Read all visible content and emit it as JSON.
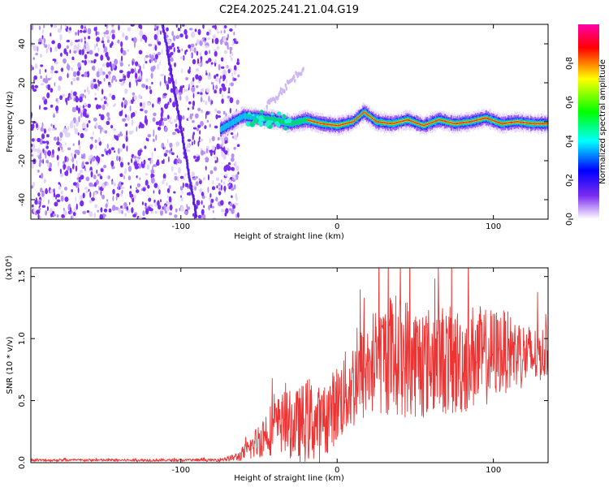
{
  "title": "C2E4.2025.241.21.04.G19",
  "chart_data": [
    {
      "type": "heatmap",
      "name": "spectrogram",
      "xlabel": "Height of straight line (km)",
      "ylabel": "Frequency (Hz)",
      "xlim": [
        -196,
        135
      ],
      "ylim": [
        -50,
        50
      ],
      "xticks": [
        -100,
        0,
        100
      ],
      "xtick_labels": [
        "-100",
        "0",
        "100"
      ],
      "yticks": [
        -40,
        -20,
        0,
        20,
        40
      ],
      "ytick_labels": [
        "-40",
        "-20",
        "0",
        "20",
        "40"
      ],
      "noise_region_end_km": -63,
      "ridge": {
        "x": [
          -75,
          -60,
          -50,
          -40,
          -30,
          -20,
          -10,
          0,
          10,
          17,
          25,
          35,
          45,
          55,
          65,
          75,
          85,
          95,
          105,
          115,
          125,
          135
        ],
        "y": [
          -4,
          3,
          2,
          1,
          -1,
          1,
          -1,
          -2,
          0,
          5,
          0,
          -1,
          1,
          -2,
          1,
          -1,
          0,
          2,
          -1,
          0,
          -1,
          -1
        ]
      },
      "colorbar": {
        "label": "Normalized spectral amplitude",
        "ticks": [
          0.0,
          0.2,
          0.4,
          0.6,
          0.8
        ],
        "tick_labels": [
          "0.0",
          "0.2",
          "0.4",
          "0.6",
          "0.8"
        ],
        "range": [
          0,
          1
        ],
        "colors": [
          "#ffffff",
          "#7b2cf0",
          "#0000ff",
          "#00ffff",
          "#00ff00",
          "#ffff00",
          "#ff0000",
          "#ff00aa"
        ]
      }
    },
    {
      "type": "line",
      "name": "snr",
      "xlabel": "Height of straight line (km)",
      "ylabel": "SNR (10 * v/v)",
      "scale_label": "(x10⁴)",
      "xlim": [
        -196,
        135
      ],
      "ylim": [
        0,
        1.57
      ],
      "xticks": [
        -100,
        0,
        100
      ],
      "xtick_labels": [
        "-100",
        "0",
        "100"
      ],
      "yticks": [
        0.0,
        0.5,
        1.0,
        1.5
      ],
      "ytick_labels": [
        "0.0",
        "0.5",
        "1.0",
        "1.5"
      ],
      "color": "#ee3333",
      "envelope": {
        "x": [
          -196,
          -80,
          -70,
          -63,
          -55,
          -45,
          -35,
          -25,
          -18,
          -10,
          -5,
          5,
          15,
          25,
          35,
          45,
          55,
          65,
          75,
          85,
          95,
          105,
          115,
          125,
          135
        ],
        "mean": [
          0.02,
          0.02,
          0.03,
          0.05,
          0.12,
          0.25,
          0.32,
          0.3,
          0.35,
          0.3,
          0.4,
          0.55,
          0.7,
          0.82,
          0.88,
          0.85,
          0.8,
          0.85,
          0.8,
          0.85,
          0.85,
          0.9,
          0.88,
          0.85,
          0.9
        ],
        "amplitude": [
          0.01,
          0.01,
          0.02,
          0.04,
          0.1,
          0.2,
          0.25,
          0.3,
          0.35,
          0.3,
          0.3,
          0.35,
          0.4,
          0.45,
          0.5,
          0.5,
          0.45,
          0.45,
          0.45,
          0.45,
          0.4,
          0.35,
          0.3,
          0.25,
          0.2
        ]
      }
    }
  ]
}
